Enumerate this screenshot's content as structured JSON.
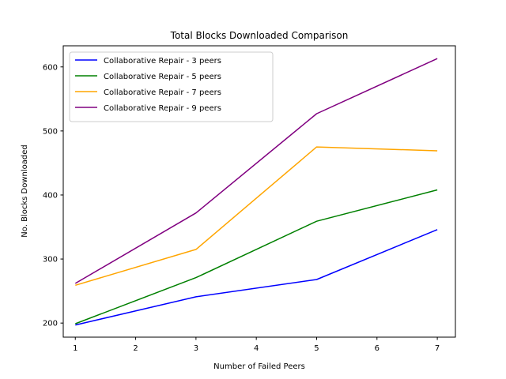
{
  "chart_data": {
    "type": "line",
    "title": "Total Blocks Downloaded Comparison",
    "xlabel": "Number of Failed Peers",
    "ylabel": "No. Blocks Downloaded",
    "x": [
      1,
      3,
      5,
      7
    ],
    "xlim": [
      0.8,
      7.3
    ],
    "ylim": [
      178,
      633
    ],
    "xticks": [
      1,
      2,
      3,
      4,
      5,
      6,
      7
    ],
    "yticks": [
      200,
      300,
      400,
      500,
      600
    ],
    "grid": false,
    "legend_position": "top-left",
    "series": [
      {
        "name": "Collaborative Repair - 3 peers",
        "color": "#0000ff",
        "values": [
          197,
          241,
          268,
          346
        ]
      },
      {
        "name": "Collaborative Repair - 5 peers",
        "color": "#008000",
        "values": [
          199,
          271,
          359,
          408
        ]
      },
      {
        "name": "Collaborative Repair - 7 peers",
        "color": "#ffa500",
        "values": [
          259,
          315,
          475,
          469
        ]
      },
      {
        "name": "Collaborative Repair - 9 peers",
        "color": "#800080",
        "values": [
          262,
          372,
          527,
          613
        ]
      }
    ]
  }
}
